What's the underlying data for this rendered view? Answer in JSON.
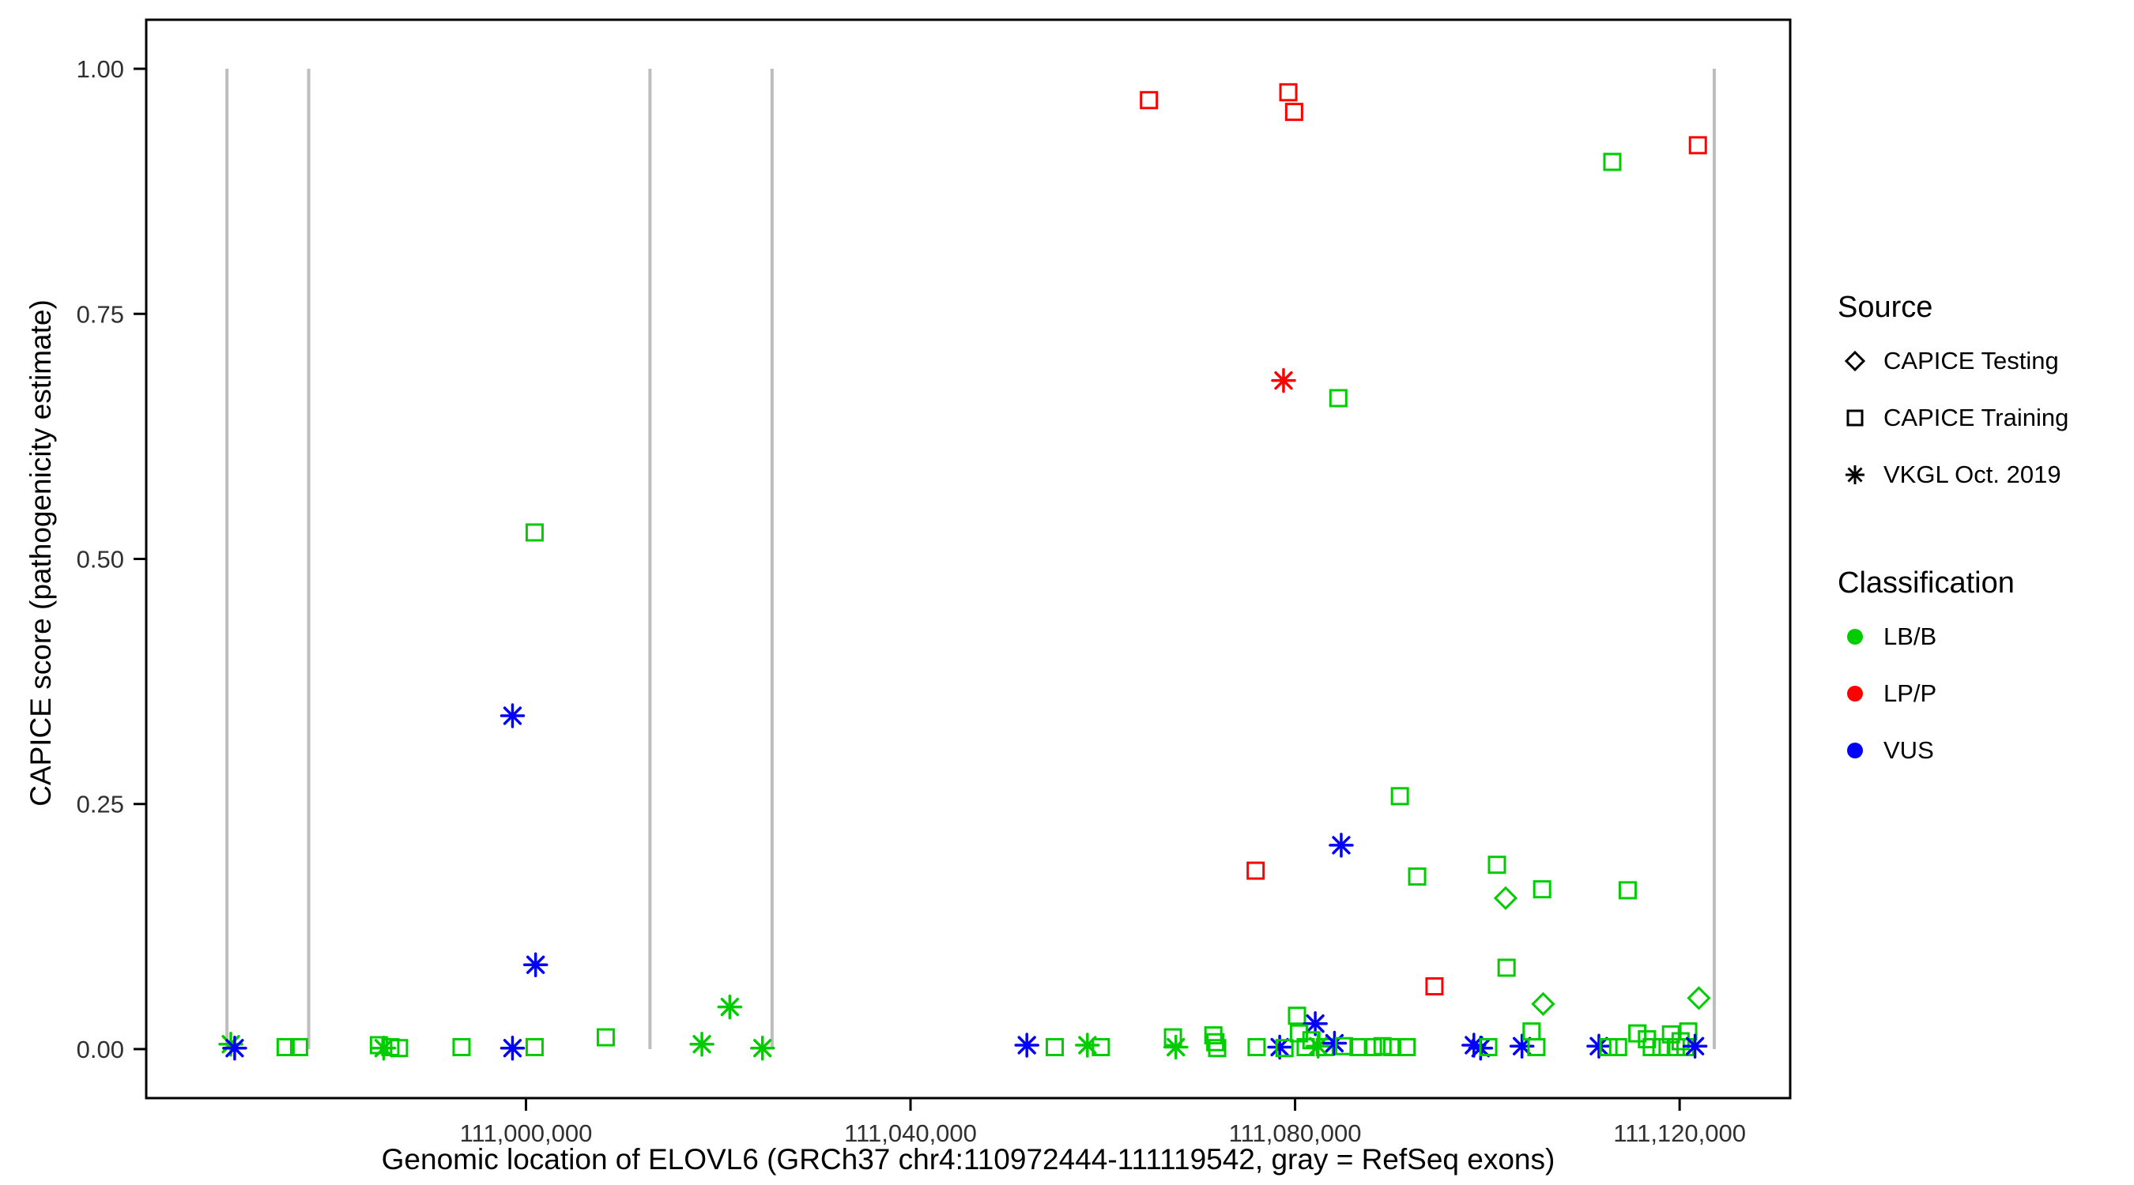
{
  "chart_data": {
    "type": "scatter",
    "title": "",
    "xlabel": "Genomic location of ELOVL6 (GRCh37 chr4:110972444-111119542, gray = RefSeq exons)",
    "ylabel": "CAPICE score (pathogenicity estimate)",
    "xlim": [
      110960500,
      111131500
    ],
    "ylim": [
      -0.05,
      1.05
    ],
    "grid": false,
    "legend_position": "right",
    "x_ticks": [
      {
        "value": 111000000,
        "label": "111,000,000"
      },
      {
        "value": 111040000,
        "label": "111,040,000"
      },
      {
        "value": 111080000,
        "label": "111,080,000"
      },
      {
        "value": 111120000,
        "label": "111,120,000"
      }
    ],
    "y_ticks": [
      {
        "value": 0.0,
        "label": "0.00"
      },
      {
        "value": 0.25,
        "label": "0.25"
      },
      {
        "value": 0.5,
        "label": "0.50"
      },
      {
        "value": 0.75,
        "label": "0.75"
      },
      {
        "value": 1.0,
        "label": "1.00"
      }
    ],
    "panel_border_color": "#000000",
    "tick_label_color": "#303030",
    "exon_color": "#BDBDBD",
    "exon_note": "gray vertical segments from y=0 to y=1 mark RefSeq exons",
    "exon_positions": [
      110968900,
      110977400,
      111012900,
      111025600,
      111123600
    ],
    "classification_colors": {
      "B": "#00CC00",
      "P": "#FF0000",
      "V": "#0000FF"
    },
    "classification_labels": {
      "B": "LB/B",
      "P": "LP/P",
      "V": "VUS"
    },
    "source_labels": {
      "tr": "CAPICE Training",
      "te": "CAPICE Testing",
      "vk": "VKGL Oct. 2019"
    },
    "shape_by_source": {
      "tr": "square",
      "te": "diamond",
      "vk": "asterisk"
    },
    "columns": [
      "x",
      "y",
      "classification",
      "source"
    ],
    "points": [
      [
        111064800,
        0.968,
        "P",
        "tr"
      ],
      [
        111079300,
        0.976,
        "P",
        "tr"
      ],
      [
        111079900,
        0.956,
        "P",
        "tr"
      ],
      [
        111121900,
        0.922,
        "P",
        "tr"
      ],
      [
        111113000,
        0.905,
        "B",
        "tr"
      ],
      [
        111078800,
        0.682,
        "P",
        "vk"
      ],
      [
        111084500,
        0.664,
        "B",
        "tr"
      ],
      [
        111000900,
        0.527,
        "B",
        "tr"
      ],
      [
        110998600,
        0.34,
        "V",
        "vk"
      ],
      [
        111090900,
        0.258,
        "B",
        "tr"
      ],
      [
        111084800,
        0.208,
        "V",
        "vk"
      ],
      [
        111101000,
        0.188,
        "B",
        "tr"
      ],
      [
        111075900,
        0.182,
        "P",
        "tr"
      ],
      [
        111092700,
        0.176,
        "B",
        "tr"
      ],
      [
        111105700,
        0.163,
        "B",
        "tr"
      ],
      [
        111114600,
        0.162,
        "B",
        "tr"
      ],
      [
        111101900,
        0.154,
        "B",
        "te"
      ],
      [
        111001000,
        0.086,
        "V",
        "vk"
      ],
      [
        111102000,
        0.083,
        "B",
        "tr"
      ],
      [
        111094500,
        0.064,
        "P",
        "tr"
      ],
      [
        111105800,
        0.046,
        "B",
        "te"
      ],
      [
        111122000,
        0.052,
        "B",
        "te"
      ],
      [
        111021200,
        0.043,
        "B",
        "vk"
      ],
      [
        111080200,
        0.034,
        "B",
        "tr"
      ],
      [
        111082100,
        0.026,
        "V",
        "vk"
      ],
      [
        110969300,
        0.005,
        "B",
        "vk"
      ],
      [
        110969700,
        0.001,
        "V",
        "vk"
      ],
      [
        110975000,
        0.002,
        "B",
        "tr"
      ],
      [
        110976400,
        0.002,
        "B",
        "tr"
      ],
      [
        110984700,
        0.004,
        "B",
        "tr"
      ],
      [
        110985200,
        0.001,
        "B",
        "vk"
      ],
      [
        110985900,
        0.002,
        "B",
        "tr"
      ],
      [
        110986800,
        0.001,
        "B",
        "tr"
      ],
      [
        110993300,
        0.002,
        "B",
        "tr"
      ],
      [
        110998600,
        0.001,
        "V",
        "vk"
      ],
      [
        111000900,
        0.002,
        "B",
        "tr"
      ],
      [
        111008300,
        0.012,
        "B",
        "tr"
      ],
      [
        111018300,
        0.005,
        "B",
        "vk"
      ],
      [
        111024600,
        0.001,
        "B",
        "vk"
      ],
      [
        111052100,
        0.004,
        "V",
        "vk"
      ],
      [
        111055000,
        0.002,
        "B",
        "tr"
      ],
      [
        111058400,
        0.004,
        "B",
        "vk"
      ],
      [
        111059800,
        0.002,
        "B",
        "tr"
      ],
      [
        111067300,
        0.012,
        "B",
        "tr"
      ],
      [
        111067600,
        0.002,
        "B",
        "vk"
      ],
      [
        111071500,
        0.014,
        "B",
        "tr"
      ],
      [
        111071700,
        0.007,
        "B",
        "tr"
      ],
      [
        111071900,
        0.001,
        "B",
        "tr"
      ],
      [
        111076000,
        0.002,
        "B",
        "tr"
      ],
      [
        111078400,
        0.002,
        "V",
        "vk"
      ],
      [
        111078900,
        0.001,
        "B",
        "tr"
      ],
      [
        111080400,
        0.016,
        "B",
        "tr"
      ],
      [
        111081100,
        0.002,
        "B",
        "tr"
      ],
      [
        111081700,
        0.009,
        "B",
        "tr"
      ],
      [
        111082400,
        0.003,
        "B",
        "vk"
      ],
      [
        111083100,
        0.002,
        "B",
        "tr"
      ],
      [
        111084100,
        0.006,
        "V",
        "vk"
      ],
      [
        111085100,
        0.003,
        "B",
        "tr"
      ],
      [
        111086600,
        0.002,
        "B",
        "tr"
      ],
      [
        111088100,
        0.002,
        "B",
        "tr"
      ],
      [
        111089100,
        0.003,
        "B",
        "tr"
      ],
      [
        111090100,
        0.002,
        "B",
        "tr"
      ],
      [
        111091600,
        0.002,
        "B",
        "tr"
      ],
      [
        111098600,
        0.004,
        "V",
        "vk"
      ],
      [
        111099300,
        0.001,
        "V",
        "vk"
      ],
      [
        111100100,
        0.002,
        "B",
        "tr"
      ],
      [
        111103600,
        0.003,
        "V",
        "vk"
      ],
      [
        111104600,
        0.018,
        "B",
        "tr"
      ],
      [
        111105100,
        0.002,
        "B",
        "tr"
      ],
      [
        111111600,
        0.003,
        "V",
        "vk"
      ],
      [
        111112600,
        0.002,
        "B",
        "tr"
      ],
      [
        111113600,
        0.002,
        "B",
        "tr"
      ],
      [
        111115600,
        0.016,
        "B",
        "tr"
      ],
      [
        111116600,
        0.01,
        "B",
        "tr"
      ],
      [
        111117100,
        0.002,
        "B",
        "tr"
      ],
      [
        111118100,
        0.002,
        "B",
        "tr"
      ],
      [
        111119100,
        0.015,
        "B",
        "tr"
      ],
      [
        111119600,
        0.002,
        "B",
        "tr"
      ],
      [
        111120100,
        0.008,
        "B",
        "tr"
      ],
      [
        111120600,
        0.002,
        "B",
        "tr"
      ],
      [
        111120900,
        0.018,
        "B",
        "tr"
      ],
      [
        111121600,
        0.003,
        "V",
        "vk"
      ]
    ]
  },
  "legend": {
    "source": {
      "title": "Source",
      "items": [
        {
          "label": "CAPICE Testing",
          "shape": "diamond"
        },
        {
          "label": "CAPICE Training",
          "shape": "square"
        },
        {
          "label": "VKGL Oct. 2019",
          "shape": "asterisk"
        }
      ]
    },
    "classification": {
      "title": "Classification",
      "items": [
        {
          "label": "LB/B",
          "color": "#00CC00"
        },
        {
          "label": "LP/P",
          "color": "#FF0000"
        },
        {
          "label": "VUS",
          "color": "#0000FF"
        }
      ]
    }
  }
}
